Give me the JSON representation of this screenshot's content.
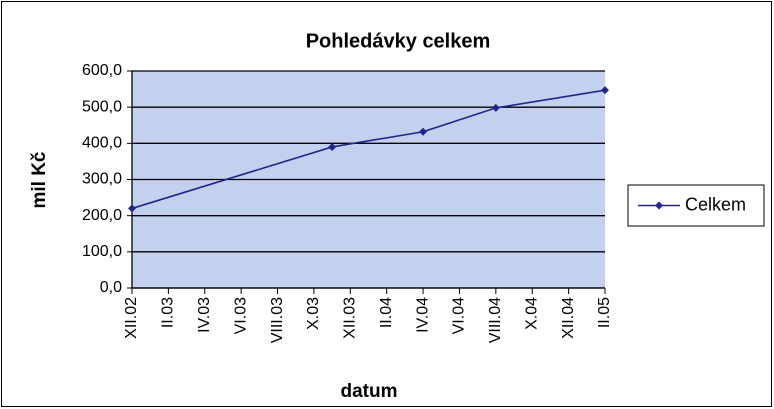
{
  "chart_data": {
    "type": "line",
    "title": "Pohledávky celkem",
    "x_label": "datum",
    "y_label": "mil Kč",
    "x": [
      "2002-12",
      "2003-11",
      "2004-04",
      "2004-08",
      "2005-02"
    ],
    "series": [
      {
        "name": "Celkem",
        "color": "#24248f",
        "values": [
          220,
          390,
          432,
          498,
          547
        ]
      }
    ],
    "xlim": [
      "2002-12",
      "2005-02"
    ],
    "xticks": [
      {
        "value": "2002-12",
        "label": "XII.02"
      },
      {
        "value": "2003-02",
        "label": "II.03"
      },
      {
        "value": "2003-04",
        "label": "IV.03"
      },
      {
        "value": "2003-06",
        "label": "VI.03"
      },
      {
        "value": "2003-08",
        "label": "VIII.03"
      },
      {
        "value": "2003-10",
        "label": "X.03"
      },
      {
        "value": "2003-12",
        "label": "XII.03"
      },
      {
        "value": "2004-02",
        "label": "II.04"
      },
      {
        "value": "2004-04",
        "label": "IV.04"
      },
      {
        "value": "2004-06",
        "label": "VI.04"
      },
      {
        "value": "2004-08",
        "label": "VIII.04"
      },
      {
        "value": "2004-10",
        "label": "X.04"
      },
      {
        "value": "2004-12",
        "label": "XII.04"
      },
      {
        "value": "2005-02",
        "label": "II.05"
      }
    ],
    "ylim": [
      0,
      600
    ],
    "yticks": [
      {
        "value": 0,
        "label": "0,0"
      },
      {
        "value": 100,
        "label": "100,0"
      },
      {
        "value": 200,
        "label": "200,0"
      },
      {
        "value": 300,
        "label": "300,0"
      },
      {
        "value": 400,
        "label": "400,0"
      },
      {
        "value": 500,
        "label": "500,0"
      },
      {
        "value": 600,
        "label": "600,0"
      }
    ],
    "grid": true,
    "plot_background": "#c3d1ef",
    "legend": "right"
  }
}
